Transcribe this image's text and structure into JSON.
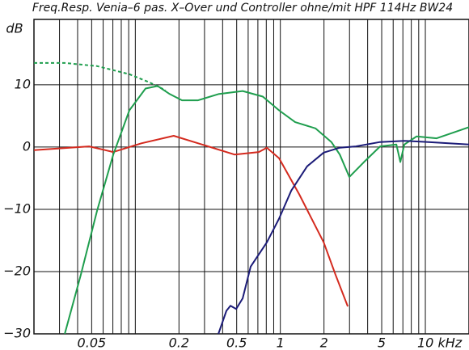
{
  "chart_data": {
    "type": "line",
    "title": "Freq.Resp. Venia–6 pas. X–Over und Controller ohne/mit HPF 114Hz BW24",
    "y_label": "dB",
    "xlog": true,
    "grid": true,
    "xlim": [
      0.02,
      20
    ],
    "ylim": [
      -30,
      20.5
    ],
    "xticks": [
      0.05,
      0.2,
      0.5,
      1,
      2,
      5,
      {
        "value": 10,
        "label": "10 kHz"
      }
    ],
    "xminor_ticks": [
      0.02,
      0.03,
      0.04,
      0.05,
      0.06,
      0.07,
      0.08,
      0.09,
      0.1,
      0.2,
      0.3,
      0.4,
      0.5,
      0.6,
      0.7,
      0.8,
      0.9,
      1,
      2,
      3,
      4,
      5,
      6,
      7,
      8,
      9,
      10,
      20
    ],
    "yticks": [
      {
        "value": -30,
        "label": "−30"
      },
      {
        "value": -20,
        "label": "−20"
      },
      {
        "value": -10,
        "label": "−10"
      },
      0,
      10
    ],
    "series": [
      {
        "color": "#d42a1e",
        "dash": false,
        "x": [
          0.02,
          0.048,
          0.0705,
          0.11,
          0.184,
          0.289,
          0.483,
          0.71,
          0.807,
          0.98,
          1.35,
          1.99,
          2.4,
          2.92
        ],
        "values": [
          -0.5,
          0.1,
          -0.8,
          0.6,
          1.8,
          0.4,
          -1.2,
          -0.8,
          -0.1,
          -1.8,
          -7.6,
          -15.3,
          -20.5,
          -25.6
        ]
      },
      {
        "color": "#1f9e4e",
        "dash": false,
        "x": [
          0.0326,
          0.0421,
          0.0545,
          0.0705,
          0.091,
          0.1177,
          0.1427,
          0.173,
          0.21,
          0.271,
          0.374,
          0.55,
          0.757,
          0.98,
          1.265,
          1.746,
          2.25,
          2.57,
          2.99,
          3.78,
          4.88,
          6.31,
          6.72,
          7.16,
          8.69,
          11.97,
          15.5,
          20
        ],
        "values": [
          -30,
          -20.5,
          -10.2,
          -1.2,
          5.9,
          9.4,
          9.8,
          8.5,
          7.5,
          7.5,
          8.5,
          9.0,
          8.1,
          5.9,
          4.0,
          3.0,
          0.8,
          -1.2,
          -4.8,
          -2.4,
          0.1,
          0.4,
          -2.4,
          0.4,
          1.7,
          1.4,
          2.3,
          3.2
        ]
      },
      {
        "color": "#1f9e4e",
        "dash": true,
        "x": [
          0.02,
          0.0326,
          0.0545,
          0.091,
          0.125,
          0.162
        ],
        "values": [
          13.5,
          13.5,
          13.0,
          11.7,
          10.4,
          9.1
        ]
      },
      {
        "color": "#1c1c78",
        "dash": false,
        "x": [
          0.374,
          0.425,
          0.453,
          0.496,
          0.55,
          0.624,
          0.807,
          0.98,
          1.19,
          1.53,
          1.99,
          2.57,
          3.32,
          4.88,
          7.16,
          10.5,
          20
        ],
        "values": [
          -30,
          -26.3,
          -25.5,
          -26.0,
          -24.3,
          -19.2,
          -15.3,
          -11.5,
          -7.0,
          -3.1,
          -0.9,
          -0.1,
          0.1,
          0.8,
          1.0,
          0.8,
          0.4
        ]
      }
    ]
  }
}
